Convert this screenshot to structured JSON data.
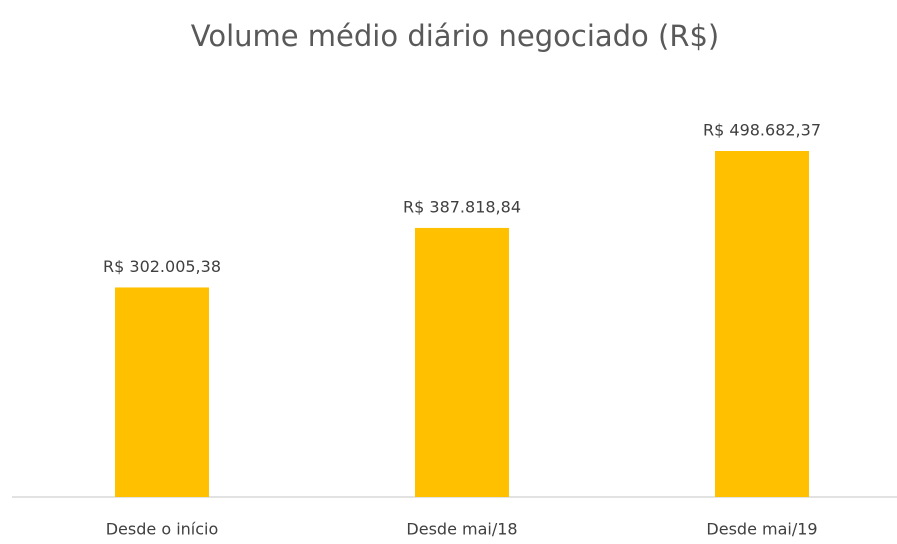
{
  "chart_data": {
    "type": "bar",
    "title": "Volume médio diário negociado (R$)",
    "categories": [
      "Desde o início",
      "Desde mai/18",
      "Desde mai/19"
    ],
    "values": [
      302005.38,
      387818.84,
      498682.37
    ],
    "value_labels": [
      "R$ 302.005,38",
      "R$ 387.818,84",
      "R$ 498.682,37"
    ],
    "color": "#ffc000"
  }
}
